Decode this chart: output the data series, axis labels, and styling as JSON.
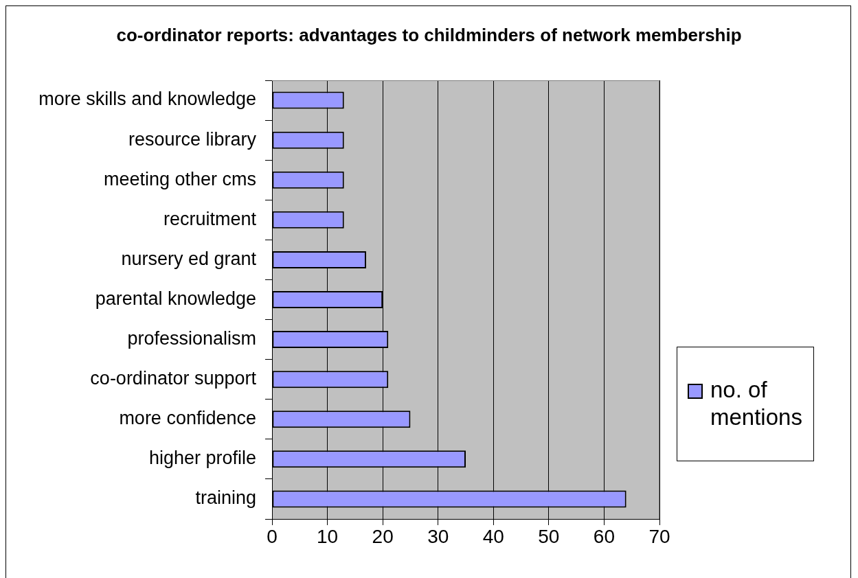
{
  "chart_data": {
    "type": "bar",
    "orientation": "horizontal",
    "title": "co-ordinator reports: advantages to childminders of network membership",
    "categories": [
      "more skills and knowledge",
      "resource library",
      "meeting other cms",
      "recruitment",
      "nursery ed grant",
      "parental knowledge",
      "professionalism",
      "co-ordinator support",
      "more confidence",
      "higher profile",
      "training"
    ],
    "series": [
      {
        "name": "no. of mentions",
        "color": "#9999ff",
        "values": [
          13,
          13,
          13,
          13,
          17,
          20,
          21,
          21,
          25,
          35,
          64
        ]
      }
    ],
    "xlim": [
      0,
      70
    ],
    "xticks": [
      0,
      10,
      20,
      30,
      40,
      50,
      60,
      70
    ],
    "grid": "x",
    "legend": "right"
  }
}
